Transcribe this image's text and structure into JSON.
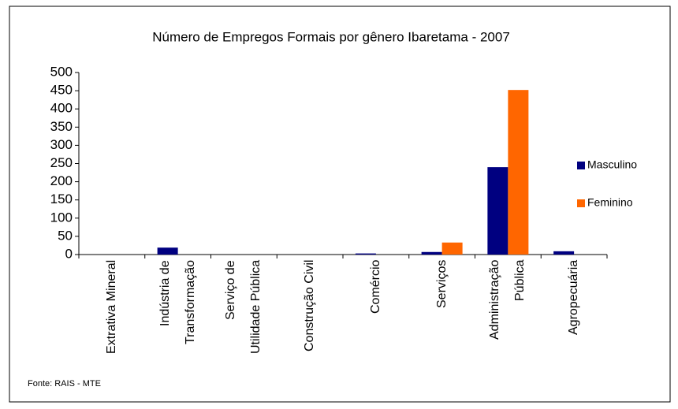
{
  "chart_data": {
    "type": "bar",
    "title": "Número de Empregos Formais por gênero Ibaretama - 2007",
    "categories": [
      "Extrativa Mineral",
      "Indústria de Transformação",
      "Serviço de Utilidade Pública",
      "Construção Civil",
      "Comércio",
      "Serviços",
      "Administração Pública",
      "Agropecuária"
    ],
    "series": [
      {
        "name": "Masculino",
        "color": "#000080",
        "values": [
          0,
          19,
          0,
          0,
          3,
          7,
          240,
          9
        ]
      },
      {
        "name": "Feminino",
        "color": "#ff6600",
        "values": [
          0,
          0,
          0,
          0,
          0,
          33,
          452,
          0
        ]
      }
    ],
    "ylim": [
      0,
      500
    ],
    "yticks": [
      0,
      50,
      100,
      150,
      200,
      250,
      300,
      350,
      400,
      450,
      500
    ],
    "grid": false,
    "legend": "right",
    "source": "Fonte: RAIS - MTE"
  }
}
